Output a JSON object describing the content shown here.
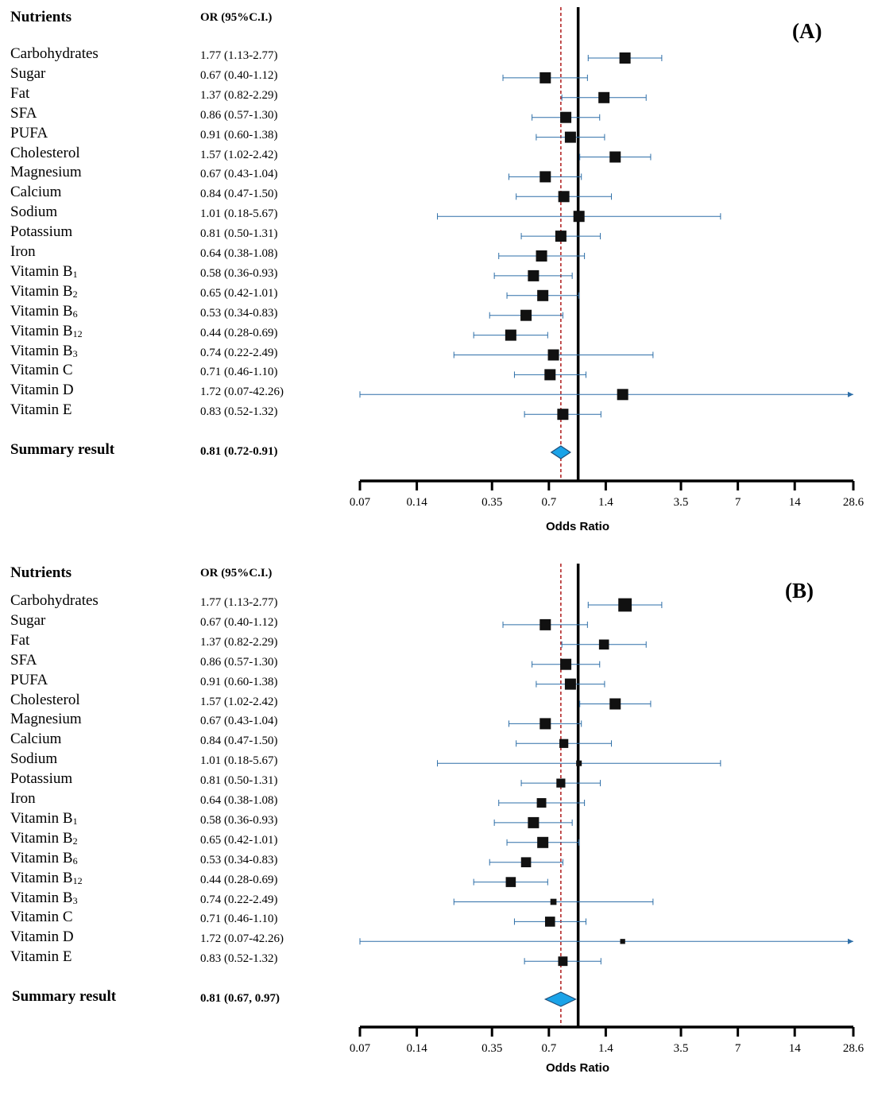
{
  "chart_data": [
    {
      "type": "forest",
      "panel_label": "(A)",
      "header_col1": "Nutrients",
      "header_col2": "OR (95%C.I.)",
      "xlabel": "Odds Ratio",
      "x_scale": "log",
      "xlim": [
        0.07,
        28.6
      ],
      "ticks": [
        "0.07",
        "0.14",
        "0.35",
        "0.7",
        "1.4",
        "3.5",
        "7",
        "14",
        "28.6"
      ],
      "tick_values": [
        0.07,
        0.14,
        0.35,
        0.7,
        1.4,
        3.5,
        7,
        14,
        28.6
      ],
      "null_line": 1,
      "summary_line": 0.81,
      "rows": [
        {
          "name": "Carbohydrates",
          "sub": "",
          "or_text": "1.77 (1.13-2.77)",
          "or": 1.77,
          "lo": 1.13,
          "hi": 2.77,
          "weight": 1.0
        },
        {
          "name": "Sugar",
          "sub": "",
          "or_text": "0.67 (0.40-1.12)",
          "or": 0.67,
          "lo": 0.4,
          "hi": 1.12,
          "weight": 1.0
        },
        {
          "name": "Fat",
          "sub": "",
          "or_text": "1.37 (0.82-2.29)",
          "or": 1.37,
          "lo": 0.82,
          "hi": 2.29,
          "weight": 1.0
        },
        {
          "name": "SFA",
          "sub": "",
          "or_text": "0.86 (0.57-1.30)",
          "or": 0.86,
          "lo": 0.57,
          "hi": 1.3,
          "weight": 1.0
        },
        {
          "name": "PUFA",
          "sub": "",
          "or_text": "0.91 (0.60-1.38)",
          "or": 0.91,
          "lo": 0.6,
          "hi": 1.38,
          "weight": 1.0
        },
        {
          "name": "Cholesterol",
          "sub": "",
          "or_text": "1.57 (1.02-2.42)",
          "or": 1.57,
          "lo": 1.02,
          "hi": 2.42,
          "weight": 1.0
        },
        {
          "name": "Magnesium",
          "sub": "",
          "or_text": "0.67 (0.43-1.04)",
          "or": 0.67,
          "lo": 0.43,
          "hi": 1.04,
          "weight": 1.0
        },
        {
          "name": "Calcium",
          "sub": "",
          "or_text": "0.84 (0.47-1.50)",
          "or": 0.84,
          "lo": 0.47,
          "hi": 1.5,
          "weight": 1.0
        },
        {
          "name": "Sodium",
          "sub": "",
          "or_text": "1.01 (0.18-5.67)",
          "or": 1.01,
          "lo": 0.18,
          "hi": 5.67,
          "weight": 1.0
        },
        {
          "name": "Potassium",
          "sub": "",
          "or_text": "0.81 (0.50-1.31)",
          "or": 0.81,
          "lo": 0.5,
          "hi": 1.31,
          "weight": 1.0
        },
        {
          "name": "Iron",
          "sub": "",
          "or_text": "0.64 (0.38-1.08)",
          "or": 0.64,
          "lo": 0.38,
          "hi": 1.08,
          "weight": 1.0
        },
        {
          "name": "Vitamin B",
          "sub": "1",
          "or_text": "0.58 (0.36-0.93)",
          "or": 0.58,
          "lo": 0.36,
          "hi": 0.93,
          "weight": 1.0
        },
        {
          "name": "Vitamin B",
          "sub": "2",
          "or_text": "0.65 (0.42-1.01)",
          "or": 0.65,
          "lo": 0.42,
          "hi": 1.01,
          "weight": 1.0
        },
        {
          "name": "Vitamin B",
          "sub": "6",
          "or_text": "0.53 (0.34-0.83)",
          "or": 0.53,
          "lo": 0.34,
          "hi": 0.83,
          "weight": 1.0
        },
        {
          "name": "Vitamin B",
          "sub": "12",
          "or_text": "0.44 (0.28-0.69)",
          "or": 0.44,
          "lo": 0.28,
          "hi": 0.69,
          "weight": 1.0
        },
        {
          "name": "Vitamin B",
          "sub": "3",
          "or_text": "0.74 (0.22-2.49)",
          "or": 0.74,
          "lo": 0.22,
          "hi": 2.49,
          "weight": 1.0
        },
        {
          "name": "Vitamin C",
          "sub": "",
          "or_text": "0.71 (0.46-1.10)",
          "or": 0.71,
          "lo": 0.46,
          "hi": 1.1,
          "weight": 1.0
        },
        {
          "name": "Vitamin D",
          "sub": "",
          "or_text": "1.72 (0.07-42.26)",
          "or": 1.72,
          "lo": 0.07,
          "hi": 42.26,
          "weight": 1.0
        },
        {
          "name": "Vitamin E",
          "sub": "",
          "or_text": "0.83 (0.52-1.32)",
          "or": 0.83,
          "lo": 0.52,
          "hi": 1.32,
          "weight": 1.0
        }
      ],
      "summary": {
        "name": "Summary result",
        "or_text": "0.81 (0.72-0.91)",
        "or": 0.81,
        "lo": 0.72,
        "hi": 0.91
      }
    },
    {
      "type": "forest",
      "panel_label": "(B)",
      "header_col1": "Nutrients",
      "header_col2": "OR (95%C.I.)",
      "xlabel": "Odds Ratio",
      "x_scale": "log",
      "xlim": [
        0.07,
        28.6
      ],
      "ticks": [
        "0.07",
        "0.14",
        "0.35",
        "0.7",
        "1.4",
        "3.5",
        "7",
        "14",
        "28.6"
      ],
      "tick_values": [
        0.07,
        0.14,
        0.35,
        0.7,
        1.4,
        3.5,
        7,
        14,
        28.6
      ],
      "null_line": 1,
      "summary_line": 0.81,
      "rows": [
        {
          "name": "Carbohydrates",
          "sub": "",
          "or_text": "1.77 (1.13-2.77)",
          "or": 1.77,
          "lo": 1.13,
          "hi": 2.77,
          "weight": 1.2
        },
        {
          "name": "Sugar",
          "sub": "",
          "or_text": "0.67 (0.40-1.12)",
          "or": 0.67,
          "lo": 0.4,
          "hi": 1.12,
          "weight": 1.0
        },
        {
          "name": "Fat",
          "sub": "",
          "or_text": "1.37 (0.82-2.29)",
          "or": 1.37,
          "lo": 0.82,
          "hi": 2.29,
          "weight": 0.9
        },
        {
          "name": "SFA",
          "sub": "",
          "or_text": "0.86 (0.57-1.30)",
          "or": 0.86,
          "lo": 0.57,
          "hi": 1.3,
          "weight": 1.0
        },
        {
          "name": "PUFA",
          "sub": "",
          "or_text": "0.91 (0.60-1.38)",
          "or": 0.91,
          "lo": 0.6,
          "hi": 1.38,
          "weight": 1.0
        },
        {
          "name": "Cholesterol",
          "sub": "",
          "or_text": "1.57 (1.02-2.42)",
          "or": 1.57,
          "lo": 1.02,
          "hi": 2.42,
          "weight": 1.0
        },
        {
          "name": "Magnesium",
          "sub": "",
          "or_text": "0.67 (0.43-1.04)",
          "or": 0.67,
          "lo": 0.43,
          "hi": 1.04,
          "weight": 1.0
        },
        {
          "name": "Calcium",
          "sub": "",
          "or_text": "0.84 (0.47-1.50)",
          "or": 0.84,
          "lo": 0.47,
          "hi": 1.5,
          "weight": 0.8
        },
        {
          "name": "Sodium",
          "sub": "",
          "or_text": "1.01 (0.18-5.67)",
          "or": 1.01,
          "lo": 0.18,
          "hi": 5.67,
          "weight": 0.5
        },
        {
          "name": "Potassium",
          "sub": "",
          "or_text": "0.81 (0.50-1.31)",
          "or": 0.81,
          "lo": 0.5,
          "hi": 1.31,
          "weight": 0.8
        },
        {
          "name": "Iron",
          "sub": "",
          "or_text": "0.64 (0.38-1.08)",
          "or": 0.64,
          "lo": 0.38,
          "hi": 1.08,
          "weight": 0.85
        },
        {
          "name": "Vitamin B",
          "sub": "1",
          "or_text": "0.58 (0.36-0.93)",
          "or": 0.58,
          "lo": 0.36,
          "hi": 0.93,
          "weight": 1.0
        },
        {
          "name": "Vitamin B",
          "sub": "2",
          "or_text": "0.65 (0.42-1.01)",
          "or": 0.65,
          "lo": 0.42,
          "hi": 1.01,
          "weight": 1.0
        },
        {
          "name": "Vitamin B",
          "sub": "6",
          "or_text": "0.53 (0.34-0.83)",
          "or": 0.53,
          "lo": 0.34,
          "hi": 0.83,
          "weight": 0.9
        },
        {
          "name": "Vitamin B",
          "sub": "12",
          "or_text": "0.44 (0.28-0.69)",
          "or": 0.44,
          "lo": 0.28,
          "hi": 0.69,
          "weight": 0.9
        },
        {
          "name": "Vitamin B",
          "sub": "3",
          "or_text": "0.74 (0.22-2.49)",
          "or": 0.74,
          "lo": 0.22,
          "hi": 2.49,
          "weight": 0.55
        },
        {
          "name": "Vitamin C",
          "sub": "",
          "or_text": "0.71 (0.46-1.10)",
          "or": 0.71,
          "lo": 0.46,
          "hi": 1.1,
          "weight": 0.9
        },
        {
          "name": "Vitamin D",
          "sub": "",
          "or_text": "1.72 (0.07-42.26)",
          "or": 1.72,
          "lo": 0.07,
          "hi": 42.26,
          "weight": 0.45
        },
        {
          "name": "Vitamin E",
          "sub": "",
          "or_text": "0.83 (0.52-1.32)",
          "or": 0.83,
          "lo": 0.52,
          "hi": 1.32,
          "weight": 0.85
        }
      ],
      "summary": {
        "name": "Summary result",
        "or_text": "0.81 (0.67,  0.97)",
        "or": 0.81,
        "lo": 0.67,
        "hi": 0.97
      }
    }
  ],
  "colors": {
    "ci_line": "#2e6fa8",
    "marker": "#111111",
    "summary_fill": "#1aa3e8",
    "summary_stroke": "#1f4e79",
    "summary_line": "#b01818",
    "axis": "#000000"
  }
}
